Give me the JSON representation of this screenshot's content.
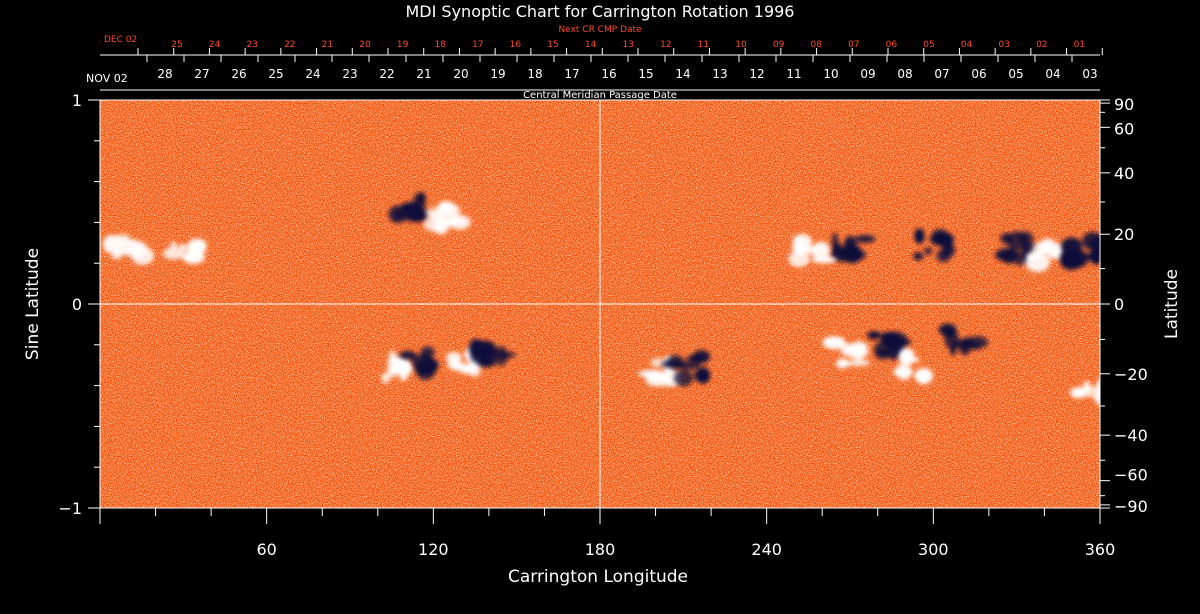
{
  "title": "MDI Synoptic Chart for Carrington Rotation 1996",
  "top_axis": {
    "next_label": "Next CR CMP Date",
    "next_start": "DEC 02",
    "next_ticks": [
      "25",
      "24",
      "23",
      "22",
      "21",
      "20",
      "19",
      "18",
      "17",
      "16",
      "15",
      "14",
      "13",
      "12",
      "11",
      "10",
      "09",
      "08",
      "07",
      "06",
      "05",
      "04",
      "03",
      "02",
      "01"
    ],
    "cmp_start": "NOV 02",
    "cmp_ticks": [
      "28",
      "27",
      "26",
      "25",
      "24",
      "23",
      "22",
      "21",
      "20",
      "19",
      "18",
      "17",
      "16",
      "15",
      "14",
      "13",
      "12",
      "11",
      "10",
      "09",
      "08",
      "07",
      "06",
      "05",
      "04",
      "03"
    ],
    "cmp_label": "Central Meridian Passage Date"
  },
  "colors": {
    "background": "#000000",
    "axis": "#ffffff",
    "map_base": "#ff4a00",
    "map_dark": "#c62400",
    "map_bright": "#ff9a33",
    "positive_polarity": "#ffffff",
    "negative_polarity": "#0a0a3a",
    "accent_text": "#ff4a2a"
  },
  "chart_data": {
    "type": "heatmap",
    "title": "MDI Synoptic Chart for Carrington Rotation 1996",
    "xlabel": "Carrington Longitude",
    "ylabel": "Sine Latitude",
    "y2label": "Latitude",
    "xlim": [
      0,
      360
    ],
    "ylim": [
      -1,
      1
    ],
    "x_ticks": [
      60,
      120,
      180,
      240,
      300,
      360
    ],
    "x_tick_labels": [
      "60",
      "120",
      "180",
      "240",
      "300",
      "360"
    ],
    "y_ticks": [
      -1,
      0,
      1
    ],
    "y_tick_labels": [
      "−1",
      "0",
      "1"
    ],
    "y2_ticks": [
      90,
      60,
      40,
      20,
      0,
      -20,
      -40,
      -60,
      -90
    ],
    "y2_tick_labels": [
      "90",
      "60",
      "40",
      "20",
      "0",
      "−20",
      "−40",
      "−60",
      "−90"
    ],
    "grid_lines": {
      "longitude": 180,
      "sine_latitude": 0
    },
    "active_regions": [
      {
        "lon": 112,
        "sinlat": 0.47,
        "polarity": "negative"
      },
      {
        "lon": 125,
        "sinlat": 0.43,
        "polarity": "positive"
      },
      {
        "lon": 10,
        "sinlat": 0.28,
        "polarity": "positive"
      },
      {
        "lon": 30,
        "sinlat": 0.25,
        "polarity": "positive"
      },
      {
        "lon": 270,
        "sinlat": 0.29,
        "polarity": "negative"
      },
      {
        "lon": 255,
        "sinlat": 0.27,
        "polarity": "positive"
      },
      {
        "lon": 332,
        "sinlat": 0.27,
        "polarity": "negative"
      },
      {
        "lon": 340,
        "sinlat": 0.24,
        "polarity": "positive"
      },
      {
        "lon": 355,
        "sinlat": 0.26,
        "polarity": "negative"
      },
      {
        "lon": 300,
        "sinlat": 0.28,
        "polarity": "negative"
      },
      {
        "lon": 105,
        "sinlat": -0.31,
        "polarity": "positive"
      },
      {
        "lon": 115,
        "sinlat": -0.28,
        "polarity": "negative"
      },
      {
        "lon": 131,
        "sinlat": -0.28,
        "polarity": "positive"
      },
      {
        "lon": 140,
        "sinlat": -0.27,
        "polarity": "negative"
      },
      {
        "lon": 203,
        "sinlat": -0.33,
        "polarity": "positive"
      },
      {
        "lon": 212,
        "sinlat": -0.31,
        "polarity": "negative"
      },
      {
        "lon": 270,
        "sinlat": -0.24,
        "polarity": "positive"
      },
      {
        "lon": 284,
        "sinlat": -0.2,
        "polarity": "negative"
      },
      {
        "lon": 292,
        "sinlat": -0.3,
        "polarity": "positive"
      },
      {
        "lon": 310,
        "sinlat": -0.18,
        "polarity": "negative"
      },
      {
        "lon": 357,
        "sinlat": -0.44,
        "polarity": "positive"
      }
    ]
  }
}
